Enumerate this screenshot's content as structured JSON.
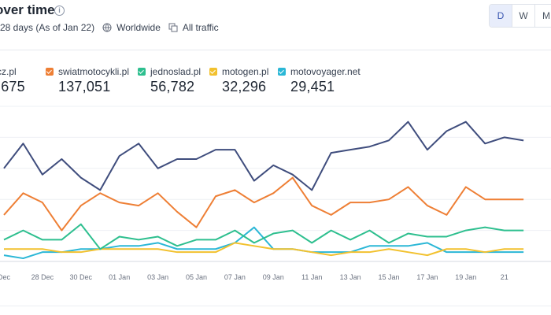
{
  "header": {
    "title": "over time",
    "period": "28 days (As of Jan 22)",
    "region": "Worldwide",
    "traffic": "All traffic"
  },
  "granularity": {
    "options": [
      "D",
      "W",
      "M"
    ],
    "selected": "D"
  },
  "colors": {
    "series1": "#3f4d7d",
    "series2": "#ee7f35",
    "series3": "#2ebf8f",
    "series4": "#f2c12e",
    "series5": "#2bb7d6"
  },
  "legend": [
    {
      "name": "cz.pl",
      "value": ",675",
      "color": "#3f4d7d"
    },
    {
      "name": "swiatmotocykli.pl",
      "value": "137,051",
      "color": "#ee7f35"
    },
    {
      "name": "jednoslad.pl",
      "value": "56,782",
      "color": "#2ebf8f"
    },
    {
      "name": "motogen.pl",
      "value": "32,296",
      "color": "#f2c12e"
    },
    {
      "name": "motovoyager.net",
      "value": "29,451",
      "color": "#2bb7d6"
    }
  ],
  "chart_data": {
    "type": "line",
    "x": [
      "Dec 26",
      "Dec 27",
      "Dec 28",
      "Dec 29",
      "Dec 30",
      "Dec 31",
      "Jan 01",
      "Jan 02",
      "Jan 03",
      "Jan 04",
      "Jan 05",
      "Jan 06",
      "Jan 07",
      "Jan 08",
      "Jan 09",
      "Jan 10",
      "Jan 11",
      "Jan 12",
      "Jan 13",
      "Jan 14",
      "Jan 15",
      "Jan 16",
      "Jan 17",
      "Jan 18",
      "Jan 19",
      "Jan 20",
      "Jan 21",
      "Jan 22"
    ],
    "x_tick_labels": [
      "Dec",
      "28 Dec",
      "30 Dec",
      "01 Jan",
      "03 Jan",
      "05 Jan",
      "07 Jan",
      "09 Jan",
      "11 Jan",
      "13 Jan",
      "15 Jan",
      "17 Jan",
      "19 Jan",
      "21"
    ],
    "series": [
      {
        "name": "cz.pl",
        "color": "#3f4d7d",
        "values": [
          30,
          38,
          28,
          33,
          27,
          23,
          34,
          38,
          30,
          33,
          33,
          36,
          36,
          26,
          31,
          28,
          23,
          35,
          36,
          37,
          39,
          45,
          36,
          42,
          45,
          38,
          40,
          39
        ]
      },
      {
        "name": "swiatmotocykli.pl",
        "value_label": "137,051",
        "color": "#ee7f35",
        "values": [
          15,
          22,
          19,
          10,
          18,
          22,
          19,
          18,
          22,
          16,
          11,
          21,
          23,
          19,
          22,
          27,
          18,
          15,
          19,
          19,
          20,
          24,
          18,
          15,
          24,
          20,
          20,
          20
        ]
      },
      {
        "name": "jednoslad.pl",
        "value_label": "56,782",
        "color": "#2ebf8f",
        "values": [
          7,
          10,
          7,
          7,
          12,
          4,
          8,
          7,
          8,
          5,
          7,
          7,
          10,
          6,
          9,
          10,
          6,
          10,
          7,
          10,
          6,
          9,
          8,
          8,
          10,
          11,
          10,
          10
        ]
      },
      {
        "name": "motogen.pl",
        "value_label": "32,296",
        "color": "#f2c12e",
        "values": [
          4,
          4,
          4,
          3,
          3,
          4,
          4,
          4,
          4,
          3,
          3,
          3,
          6,
          5,
          4,
          4,
          3,
          2,
          3,
          3,
          4,
          3,
          2,
          4,
          4,
          3,
          4,
          4
        ]
      },
      {
        "name": "motovoyager.net",
        "value_label": "29,451",
        "color": "#2bb7d6",
        "values": [
          2,
          1,
          3,
          3,
          4,
          4,
          5,
          5,
          6,
          4,
          4,
          4,
          6,
          11,
          4,
          4,
          3,
          3,
          3,
          5,
          5,
          5,
          6,
          3,
          3,
          3,
          3,
          3
        ]
      }
    ],
    "ylim": [
      0,
      50
    ],
    "grid": true
  }
}
